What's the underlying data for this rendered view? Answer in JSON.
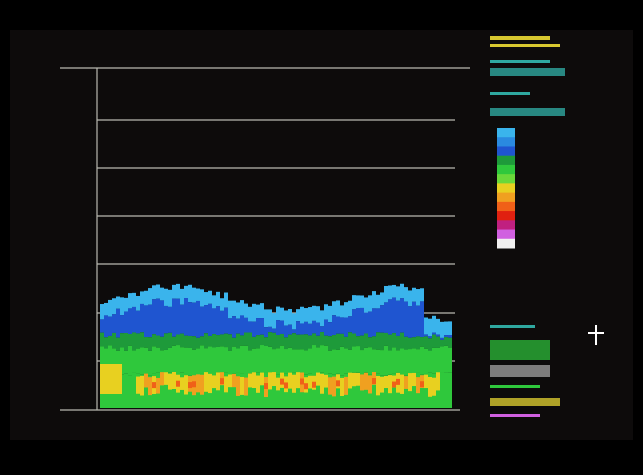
{
  "screen": {
    "colorbar": [
      "#3ab4ec",
      "#2a8ae0",
      "#1f55d0",
      "#1e9a3a",
      "#2fc83c",
      "#6ad83a",
      "#e8d020",
      "#f0a020",
      "#f06018",
      "#e02010",
      "#c02080",
      "#d060e0",
      "#f0f0f0"
    ]
  }
}
